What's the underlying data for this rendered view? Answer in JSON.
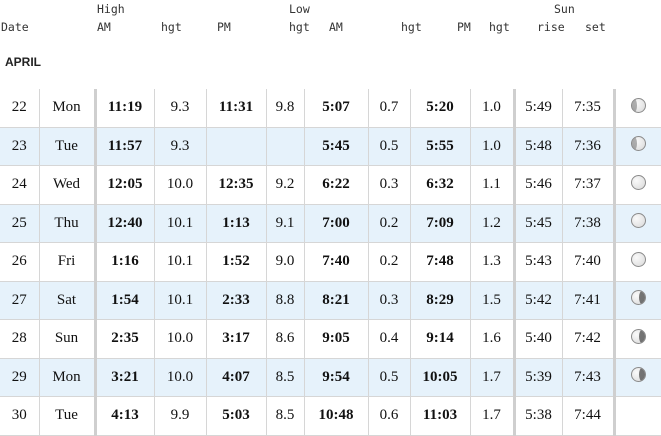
{
  "header": {
    "date": "Date",
    "high": "High",
    "high_am": "AM",
    "high_hgt1": "hgt",
    "high_pm": "PM",
    "low": "Low",
    "low_hgt_pre": "hgt",
    "low_am": "AM",
    "low_hgt1": "hgt",
    "low_pm": "PM",
    "low_hgt2": "hgt",
    "sun": "Sun",
    "rise": "rise",
    "set": "set"
  },
  "month": "APRIL",
  "rows": [
    {
      "day": "22",
      "dow": "Mon",
      "h_am": "11:19",
      "h_am_hgt": "9.3",
      "h_pm": "11:31",
      "h_pm_hgt": "9.8",
      "l_am": "5:07",
      "l_am_hgt": "0.7",
      "l_pm": "5:20",
      "l_pm_hgt": "1.0",
      "rise": "5:49",
      "set": "7:35",
      "moon": "waxing-gibbous-icon"
    },
    {
      "day": "23",
      "dow": "Tue",
      "h_am": "11:57",
      "h_am_hgt": "9.3",
      "h_pm": "",
      "h_pm_hgt": "",
      "l_am": "5:45",
      "l_am_hgt": "0.5",
      "l_pm": "5:55",
      "l_pm_hgt": "1.0",
      "rise": "5:48",
      "set": "7:36",
      "moon": "waxing-gibbous-icon"
    },
    {
      "day": "24",
      "dow": "Wed",
      "h_am": "12:05",
      "h_am_hgt": "10.0",
      "h_pm": "12:35",
      "h_pm_hgt": "9.2",
      "l_am": "6:22",
      "l_am_hgt": "0.3",
      "l_pm": "6:32",
      "l_pm_hgt": "1.1",
      "rise": "5:46",
      "set": "7:37",
      "moon": "full-moon-icon"
    },
    {
      "day": "25",
      "dow": "Thu",
      "h_am": "12:40",
      "h_am_hgt": "10.1",
      "h_pm": "1:13",
      "h_pm_hgt": "9.1",
      "l_am": "7:00",
      "l_am_hgt": "0.2",
      "l_pm": "7:09",
      "l_pm_hgt": "1.2",
      "rise": "5:45",
      "set": "7:38",
      "moon": "full-moon-icon"
    },
    {
      "day": "26",
      "dow": "Fri",
      "h_am": "1:16",
      "h_am_hgt": "10.1",
      "h_pm": "1:52",
      "h_pm_hgt": "9.0",
      "l_am": "7:40",
      "l_am_hgt": "0.2",
      "l_pm": "7:48",
      "l_pm_hgt": "1.3",
      "rise": "5:43",
      "set": "7:40",
      "moon": "full-moon-icon"
    },
    {
      "day": "27",
      "dow": "Sat",
      "h_am": "1:54",
      "h_am_hgt": "10.1",
      "h_pm": "2:33",
      "h_pm_hgt": "8.8",
      "l_am": "8:21",
      "l_am_hgt": "0.3",
      "l_pm": "8:29",
      "l_pm_hgt": "1.5",
      "rise": "5:42",
      "set": "7:41",
      "moon": "waning-gibbous-icon"
    },
    {
      "day": "28",
      "dow": "Sun",
      "h_am": "2:35",
      "h_am_hgt": "10.0",
      "h_pm": "3:17",
      "h_pm_hgt": "8.6",
      "l_am": "9:05",
      "l_am_hgt": "0.4",
      "l_pm": "9:14",
      "l_pm_hgt": "1.6",
      "rise": "5:40",
      "set": "7:42",
      "moon": "waning-gibbous-icon"
    },
    {
      "day": "29",
      "dow": "Mon",
      "h_am": "3:21",
      "h_am_hgt": "10.0",
      "h_pm": "4:07",
      "h_pm_hgt": "8.5",
      "l_am": "9:54",
      "l_am_hgt": "0.5",
      "l_pm": "10:05",
      "l_pm_hgt": "1.7",
      "rise": "5:39",
      "set": "7:43",
      "moon": "waning-gibbous-icon"
    },
    {
      "day": "30",
      "dow": "Tue",
      "h_am": "4:13",
      "h_am_hgt": "9.9",
      "h_pm": "5:03",
      "h_pm_hgt": "8.5",
      "l_am": "10:48",
      "l_am_hgt": "0.6",
      "l_pm": "11:03",
      "l_pm_hgt": "1.7",
      "rise": "5:38",
      "set": "7:44",
      "moon": ""
    }
  ],
  "colors": {
    "alt_row": "#e6f2fb",
    "grid": "#d6d6d6"
  }
}
